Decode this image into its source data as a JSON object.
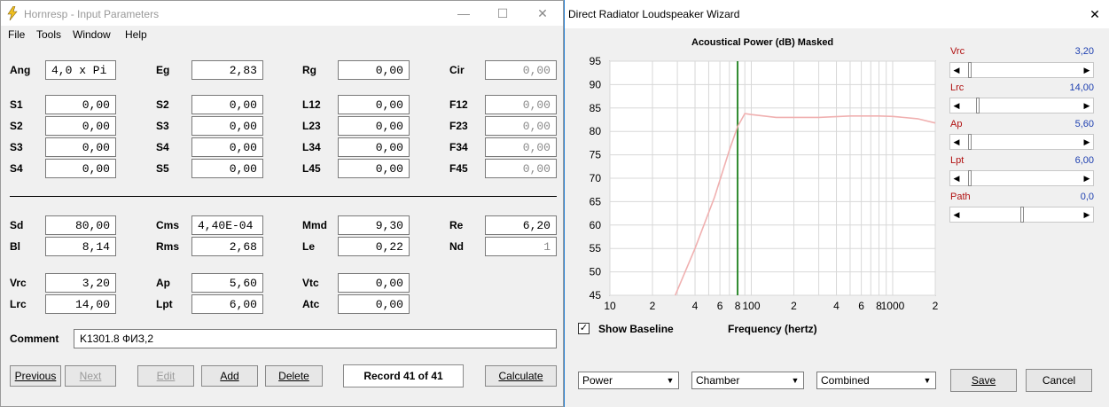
{
  "input_window": {
    "title": "Hornresp - Input Parameters",
    "menu": [
      "File",
      "Tools",
      "Window",
      "Help"
    ],
    "fields": [
      {
        "label": "Ang",
        "value": "4,0 x Pi"
      },
      {
        "label": "Eg",
        "value": "2,83"
      },
      {
        "label": "Rg",
        "value": "0,00"
      },
      {
        "label": "Cir",
        "value": "0,00"
      },
      {
        "label": "S1",
        "value": "0,00"
      },
      {
        "label": "S2",
        "value": "0,00"
      },
      {
        "label": "L12",
        "value": "0,00"
      },
      {
        "label": "F12",
        "value": "0,00"
      },
      {
        "label": "S2",
        "value": "0,00"
      },
      {
        "label": "S3",
        "value": "0,00"
      },
      {
        "label": "L23",
        "value": "0,00"
      },
      {
        "label": "F23",
        "value": "0,00"
      },
      {
        "label": "S3",
        "value": "0,00"
      },
      {
        "label": "S4",
        "value": "0,00"
      },
      {
        "label": "L34",
        "value": "0,00"
      },
      {
        "label": "F34",
        "value": "0,00"
      },
      {
        "label": "S4",
        "value": "0,00"
      },
      {
        "label": "S5",
        "value": "0,00"
      },
      {
        "label": "L45",
        "value": "0,00"
      },
      {
        "label": "F45",
        "value": "0,00"
      },
      {
        "label": "Sd",
        "value": "80,00"
      },
      {
        "label": "Cms",
        "value": "4,40E-04"
      },
      {
        "label": "Mmd",
        "value": "9,30"
      },
      {
        "label": "Re",
        "value": "6,20"
      },
      {
        "label": "Bl",
        "value": "8,14"
      },
      {
        "label": "Rms",
        "value": "2,68"
      },
      {
        "label": "Le",
        "value": "0,22"
      },
      {
        "label": "Nd",
        "value": "1"
      },
      {
        "label": "Vrc",
        "value": "3,20"
      },
      {
        "label": "Ap",
        "value": "5,60"
      },
      {
        "label": "Vtc",
        "value": "0,00"
      },
      {
        "label": "Lrc",
        "value": "14,00"
      },
      {
        "label": "Lpt",
        "value": "6,00"
      },
      {
        "label": "Atc",
        "value": "0,00"
      }
    ],
    "comment_label": "Comment",
    "comment_value": "K1301.8 ФИЗ,2",
    "buttons": {
      "previous": "Previous",
      "next": "Next",
      "edit": "Edit",
      "add": "Add",
      "delete": "Delete",
      "calculate": "Calculate"
    },
    "record": "Record 41 of 41"
  },
  "wizard_window": {
    "title": "Direct Radiator Loudspeaker Wizard",
    "chart_title": "Acoustical Power (dB)   Masked",
    "show_baseline_label": "Show Baseline",
    "show_baseline_checked": "✓",
    "xlabel": "Frequency (hertz)",
    "sliders": [
      {
        "label": "Vrc",
        "value": "3,20",
        "level": 0.05
      },
      {
        "label": "Lrc",
        "value": "14,00",
        "level": 0.12
      },
      {
        "label": "Ap",
        "value": "5,60",
        "level": 0.05
      },
      {
        "label": "Lpt",
        "value": "6,00",
        "level": 0.05
      },
      {
        "label": "Path",
        "value": "0,0",
        "level": 0.5
      }
    ],
    "combos": [
      "Power",
      "Chamber",
      "Combined"
    ],
    "buttons": {
      "save": "Save",
      "cancel": "Cancel"
    },
    "colors": {
      "curve": "#f0b0b0",
      "marker": "#2e8b2e",
      "slider_label": "#b01010",
      "slider_value": "#1d3fb0"
    }
  },
  "chart_data": {
    "type": "line",
    "title": "Acoustical Power (dB)   Masked",
    "xlabel": "Frequency (hertz)",
    "ylabel": "",
    "x_scale": "log",
    "xlim": [
      10,
      2000
    ],
    "ylim": [
      45,
      95
    ],
    "y_ticks": [
      95,
      90,
      85,
      80,
      75,
      70,
      65,
      60,
      55,
      50,
      45
    ],
    "x_tick_labels": [
      "10",
      "2",
      "4",
      "6",
      "8",
      "100",
      "2",
      "4",
      "6",
      "8",
      "1000",
      "2"
    ],
    "x_tick_values": [
      10,
      20,
      40,
      60,
      80,
      100,
      200,
      400,
      600,
      800,
      1000,
      2000
    ],
    "marker_frequency": 80,
    "series": [
      {
        "values_x": [
          29,
          40,
          55,
          70,
          80,
          90,
          100,
          150,
          200,
          300,
          500,
          800,
          1000,
          1500,
          2000
        ],
        "values_y": [
          45,
          55,
          66,
          76,
          81,
          83.8,
          83.6,
          83,
          83,
          83,
          83.3,
          83.3,
          83.2,
          82.7,
          81.8
        ]
      }
    ]
  }
}
